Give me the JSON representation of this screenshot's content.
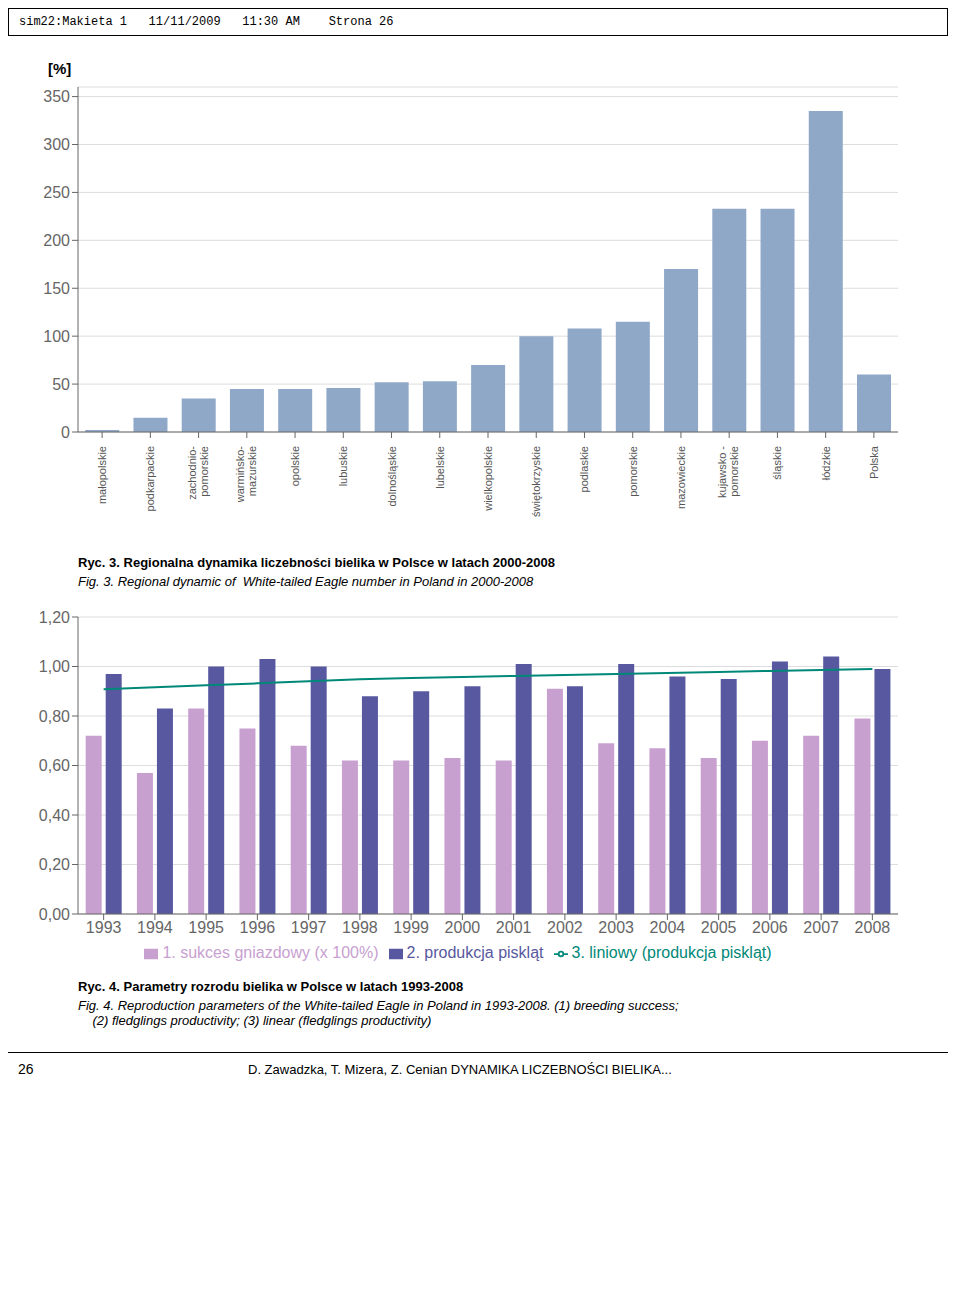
{
  "chart_data": [
    {
      "type": "bar",
      "title": "Ryc. 3. Regionalna dynamika liczebności bielika w Polsce w latach 2000-2008",
      "subtitle": "Fig. 3. Regional dynamic of  White-tailed Eagle number in Poland in 2000-2008",
      "ylabel": "[%]",
      "categories": [
        "małopolskie",
        "podkarpackie",
        "zachodnio-\npomorskie",
        "warmińsko-\nmazurskie",
        "opolskie",
        "lubuskie",
        "dolnośląskie",
        "lubelskie",
        "wielkopolskie",
        "świętokrzyskie",
        "podlaskie",
        "pomorskie",
        "mazowieckie",
        "kujawsko -\npomorskie",
        "śląskie",
        "łódzkie",
        "Polska"
      ],
      "values": [
        2,
        15,
        35,
        45,
        45,
        46,
        52,
        53,
        70,
        100,
        108,
        115,
        170,
        233,
        233,
        335,
        60
      ],
      "color": "#8fa8c8",
      "ylim": [
        0,
        360
      ],
      "yticks": [
        0,
        50,
        100,
        150,
        200,
        250,
        300,
        350
      ],
      "grid": true,
      "annotations": [
        "sim22:Makieta 1   11/11/2009   11:30 AM    Strona 26"
      ]
    },
    {
      "type": "bar",
      "title": "Ryc. 4. Parametry rozrodu bielika w Polsce w latach 1993-2008",
      "subtitle": "Fig. 4. Reproduction parameters of the White-tailed Eagle in Poland in 1993-2008. (1) breeding success;\n    (2) fledglings productivity; (3) linear (fledglings productivity)",
      "categories": [
        1993,
        1994,
        1995,
        1996,
        1997,
        1998,
        1999,
        2000,
        2001,
        2002,
        2003,
        2004,
        2005,
        2006,
        2007,
        2008
      ],
      "series": [
        {
          "name": "1. sukces gniazdowy (x 100%)",
          "type": "bar",
          "color": "#c8a0d0",
          "values": [
            0.72,
            0.57,
            0.83,
            0.75,
            0.68,
            0.62,
            0.62,
            0.63,
            0.62,
            0.91,
            0.69,
            0.67,
            0.63,
            0.7,
            0.72,
            0.79
          ]
        },
        {
          "name": "2. produkcja piskląt",
          "type": "bar",
          "color": "#5858a0",
          "values": [
            0.97,
            0.83,
            1.0,
            1.03,
            1.0,
            0.88,
            0.9,
            0.92,
            1.01,
            0.92,
            1.01,
            0.96,
            0.95,
            1.02,
            1.04,
            0.99
          ]
        },
        {
          "name": "3. liniowy (produkcja piskląt)",
          "type": "line",
          "color": "#008878",
          "values": [
            0.908,
            0.916,
            0.924,
            0.932,
            0.94,
            0.948,
            0.954,
            0.958,
            0.962,
            0.966,
            0.97,
            0.974,
            0.978,
            0.982,
            0.986,
            0.99
          ]
        }
      ],
      "ylim": [
        0.0,
        1.2
      ],
      "yticks": [
        {
          "value": 0.0,
          "label": "0,00"
        },
        {
          "value": 0.2,
          "label": "0,20"
        },
        {
          "value": 0.4,
          "label": "0,40"
        },
        {
          "value": 0.6,
          "label": "0,60"
        },
        {
          "value": 0.8,
          "label": "0,80"
        },
        {
          "value": 1.0,
          "label": "1,00"
        },
        {
          "value": 1.2,
          "label": "1,20"
        }
      ],
      "grid": true,
      "legend": "bottom",
      "annotations": [
        "26",
        "D. Zawadzka, T. Mizera, Z. Cenian DYNAMIKA LICZEBNOŚCI BIELIKA..."
      ]
    }
  ]
}
